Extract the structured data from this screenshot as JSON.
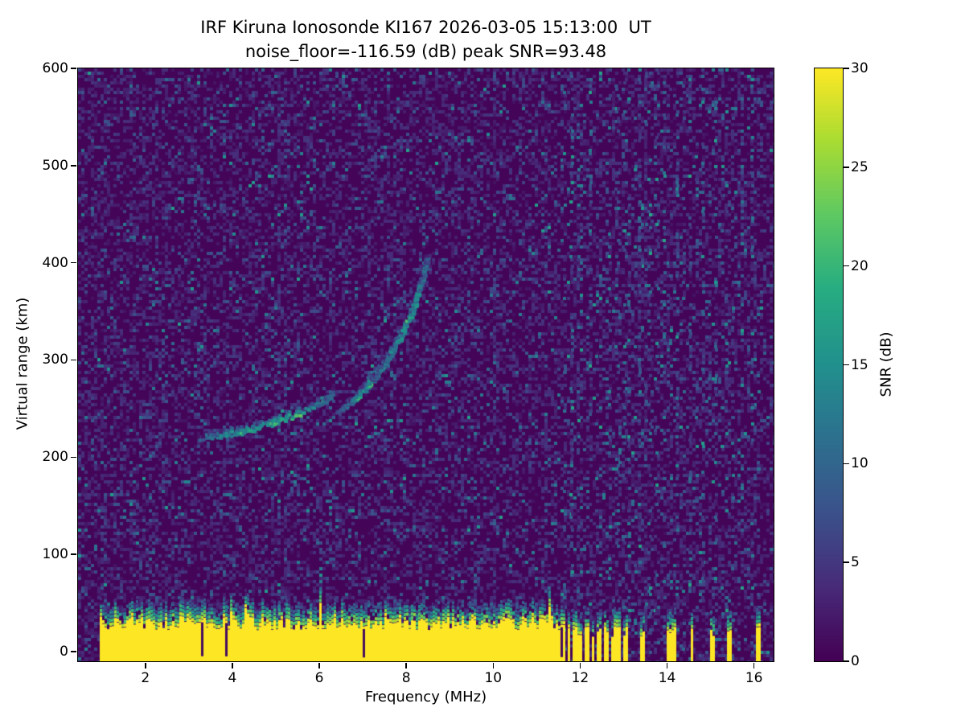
{
  "chart_data": {
    "type": "heatmap",
    "title": "IRF Kiruna Ionosonde KI167 2026-03-05 15:13:00  UT",
    "subtitle": "noise_floor=-116.59 (dB) peak SNR=93.48",
    "xlabel": "Frequency (MHz)",
    "ylabel": "Virtual range (km)",
    "x_range_mhz": [
      0.45,
      16.45
    ],
    "y_range_km": [
      -10,
      600
    ],
    "x_ticks": [
      2,
      4,
      6,
      8,
      10,
      12,
      14,
      16
    ],
    "y_ticks": [
      0,
      100,
      200,
      300,
      400,
      500,
      600
    ],
    "colorbar": {
      "label": "SNR (dB)",
      "range": [
        0,
        30
      ],
      "ticks": [
        0,
        5,
        10,
        15,
        20,
        25,
        30
      ],
      "colormap": "viridis"
    },
    "noise_floor_db": -116.59,
    "peak_snr_db": 93.48,
    "background_snr_db": 0,
    "ground_clutter": {
      "f_start_mhz": 0.9,
      "f_end_mhz": 11.62,
      "top_km_mean": 30,
      "snr_db": 30
    },
    "rfi_stripes_mhz": [
      11.72,
      11.85,
      11.98,
      12.12,
      12.27,
      12.42,
      12.57,
      12.72,
      12.87,
      13.02,
      13.42,
      14.0,
      14.12,
      14.55,
      15.0,
      15.42,
      16.05
    ],
    "noise_columns_mhz": [
      11.72,
      11.9,
      12.1,
      12.3,
      12.55,
      12.75,
      12.95,
      13.2,
      13.45,
      13.7,
      14.0,
      14.3,
      14.6,
      14.9,
      15.2,
      15.45,
      15.8,
      16.05
    ],
    "echo_traces": [
      {
        "name": "E-F1 lower trace",
        "snr_db": 16,
        "points": [
          [
            3.2,
            221
          ],
          [
            3.6,
            223
          ],
          [
            4.0,
            226
          ],
          [
            4.4,
            230
          ],
          [
            4.8,
            235
          ],
          [
            5.2,
            241
          ],
          [
            5.6,
            249
          ],
          [
            6.0,
            258
          ],
          [
            6.3,
            266
          ]
        ]
      },
      {
        "name": "F lower branch",
        "snr_db": 13,
        "points": [
          [
            6.38,
            247
          ],
          [
            6.7,
            258
          ],
          [
            7.0,
            271
          ],
          [
            7.3,
            287
          ],
          [
            7.55,
            302
          ],
          [
            7.7,
            312
          ]
        ]
      },
      {
        "name": "F upper branch",
        "snr_db": 14,
        "points": [
          [
            7.15,
            280
          ],
          [
            7.45,
            297
          ],
          [
            7.75,
            318
          ],
          [
            8.0,
            340
          ],
          [
            8.2,
            363
          ],
          [
            8.35,
            386
          ],
          [
            8.45,
            405
          ]
        ]
      }
    ]
  }
}
